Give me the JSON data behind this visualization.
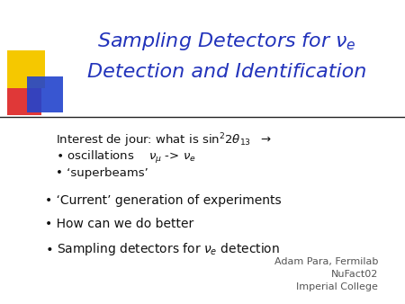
{
  "title_line1": "Sampling Detectors for $\\nu_e$",
  "title_line2": "Detection and Identification",
  "title_color": "#2233bb",
  "bg_color": "#ffffff",
  "logo_yellow": "#f5c800",
  "logo_red": "#dd2222",
  "logo_blue": "#2244cc",
  "separator_color": "#222222",
  "body_color": "#111111",
  "author_color": "#555555",
  "author1": "Adam Para, Fermilab",
  "author2": "NuFact02",
  "author3": "Imperial College"
}
